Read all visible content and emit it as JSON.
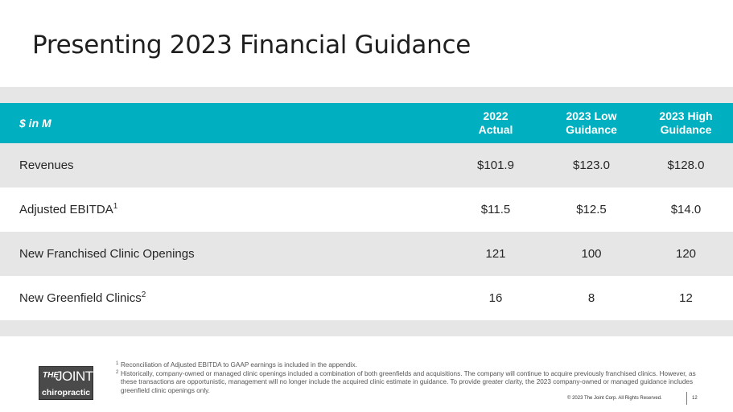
{
  "title": "Presenting 2023 Financial Guidance",
  "table": {
    "header": {
      "label": "$ in M",
      "col1": [
        "2022",
        "Actual"
      ],
      "col2": [
        "2023 Low",
        "Guidance"
      ],
      "col3": [
        "2023 High",
        "Guidance"
      ]
    },
    "rows": [
      {
        "label": "Revenues",
        "sup": "",
        "actual": "$101.9",
        "low": "$123.0",
        "high": "$128.0"
      },
      {
        "label": "Adjusted EBITDA",
        "sup": "1",
        "actual": "$11.5",
        "low": "$12.5",
        "high": "$14.0"
      },
      {
        "label": "New Franchised Clinic Openings",
        "sup": "",
        "actual": "121",
        "low": "100",
        "high": "120"
      },
      {
        "label": "New Greenfield Clinics",
        "sup": "2",
        "actual": "16",
        "low": "8",
        "high": "12"
      }
    ]
  },
  "footnotes": [
    {
      "num": "1",
      "text": "Reconciliation of Adjusted EBITDA to GAAP earnings is included in the appendix."
    },
    {
      "num": "2",
      "text": "Historically, company-owned or managed clinic openings included a combination of both greenfields and acquisitions. The company will continue to acquire previously franchised clinics. However, as these transactions are opportunistic, management will no longer include the acquired clinic estimate in guidance. To provide greater clarity, the 2023 company-owned or managed guidance includes greenfield clinic openings only."
    }
  ],
  "logo": {
    "the": "THE",
    "joint": "JOINT",
    "sub": "chiropractic"
  },
  "copyright": "© 2023 The Joint Corp. All Rights Reserved.",
  "page_number": "12",
  "colors": {
    "accent": "#00b0c0",
    "band": "#e6e6e6"
  }
}
